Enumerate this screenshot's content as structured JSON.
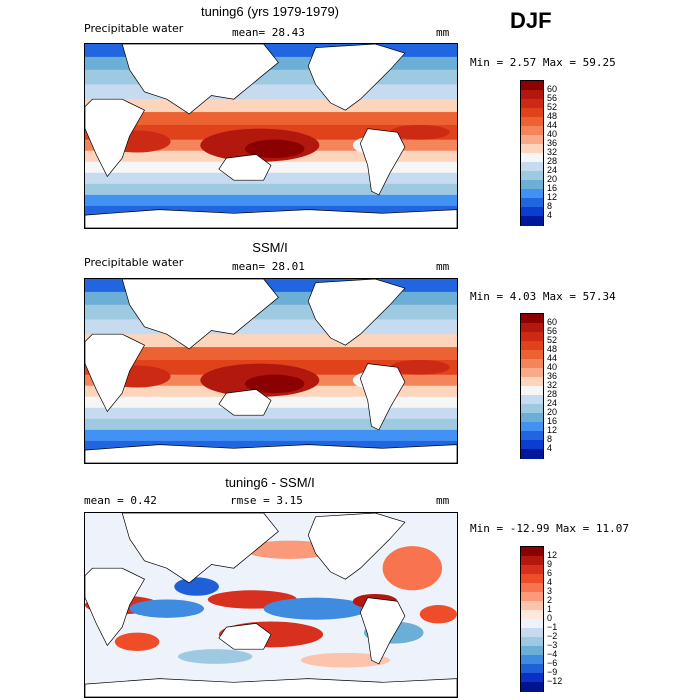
{
  "season": "DJF",
  "chart_data": [
    {
      "type": "heatmap",
      "title": "tuning6 (yrs 1979-1979)",
      "variable": "Precipitable water",
      "stat_label": "mean=",
      "stat_value": "28.43",
      "units": "mm",
      "min_label": "Min =",
      "min_value": "2.57",
      "max_label": "Max =",
      "max_value": "59.25",
      "colorbar_ticks": [
        "60",
        "56",
        "52",
        "48",
        "44",
        "40",
        "36",
        "32",
        "28",
        "24",
        "20",
        "16",
        "12",
        "8",
        "4"
      ],
      "colors": [
        "#8b0000",
        "#b2180e",
        "#cc2a14",
        "#e0421c",
        "#ec6232",
        "#f4845a",
        "#f9aa88",
        "#fdd4bc",
        "#f6f6f6",
        "#c6dbef",
        "#9ecae1",
        "#6baed6",
        "#4292f6",
        "#2166e0",
        "#0a3dd0",
        "#00189a"
      ]
    },
    {
      "type": "heatmap",
      "title": "SSM/I",
      "variable": "Precipitable water",
      "stat_label": "mean=",
      "stat_value": "28.01",
      "units": "mm",
      "min_label": "Min =",
      "min_value": "4.03",
      "max_label": "Max =",
      "max_value": "57.34",
      "colorbar_ticks": [
        "60",
        "56",
        "52",
        "48",
        "44",
        "40",
        "36",
        "32",
        "28",
        "24",
        "20",
        "16",
        "12",
        "8",
        "4"
      ],
      "colors": [
        "#8b0000",
        "#b2180e",
        "#cc2a14",
        "#e0421c",
        "#ec6232",
        "#f4845a",
        "#f9aa88",
        "#fdd4bc",
        "#f6f6f6",
        "#c6dbef",
        "#9ecae1",
        "#6baed6",
        "#4292f6",
        "#2166e0",
        "#0a3dd0",
        "#00189a"
      ]
    },
    {
      "type": "heatmap",
      "title": "tuning6 - SSM/I",
      "mean_label": "mean =",
      "mean_value": "0.42",
      "rmse_label": "rmse =",
      "rmse_value": "3.15",
      "units": "mm",
      "min_label": "Min =",
      "min_value": "-12.99",
      "max_label": "Max =",
      "max_value": "11.07",
      "colorbar_ticks": [
        "12",
        "9",
        "6",
        "4",
        "3",
        "2",
        "1",
        "0",
        "−1",
        "−2",
        "−3",
        "−4",
        "−6",
        "−9",
        "−12"
      ],
      "colors": [
        "#8b0000",
        "#b2180e",
        "#d7301f",
        "#ef4d2a",
        "#f7744f",
        "#fb9a7a",
        "#fdc4ad",
        "#fde8de",
        "#eef3fb",
        "#c6dbef",
        "#9ecae1",
        "#6baed6",
        "#3f8be0",
        "#1f5fd8",
        "#0b30c8",
        "#00138a"
      ]
    }
  ]
}
